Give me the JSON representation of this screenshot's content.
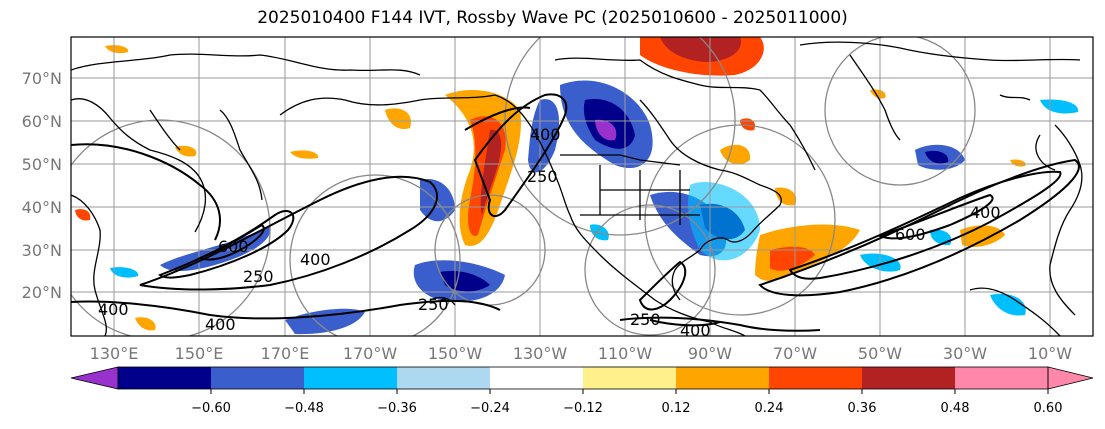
{
  "title": "2025010400 F144 IVT, Rossby Wave PC (2025010600 - 2025011000)",
  "map": {
    "lat_labels": [
      "70°N",
      "60°N",
      "50°N",
      "40°N",
      "30°N",
      "20°N"
    ],
    "lon_labels": [
      "130°E",
      "150°E",
      "170°E",
      "170°W",
      "150°W",
      "130°W",
      "110°W",
      "90°W",
      "70°W",
      "50°W",
      "30°W",
      "10°W"
    ],
    "contour_labels": [
      "600",
      "400",
      "250",
      "400",
      "250",
      "250",
      "400",
      "250",
      "400",
      "400",
      "600",
      "400"
    ]
  },
  "colorbar": {
    "ticks": [
      "−0.60",
      "−0.48",
      "−0.36",
      "−0.24",
      "−0.12",
      "0.12",
      "0.24",
      "0.36",
      "0.48",
      "0.60"
    ],
    "colors": [
      "#9932cc",
      "#00008b",
      "#3a5fcd",
      "#00bfff",
      "#add8f0",
      "#ffffff",
      "#fff08c",
      "#ffa500",
      "#ff4500",
      "#b22222",
      "#ff88aa",
      "#ff88aa"
    ]
  }
}
